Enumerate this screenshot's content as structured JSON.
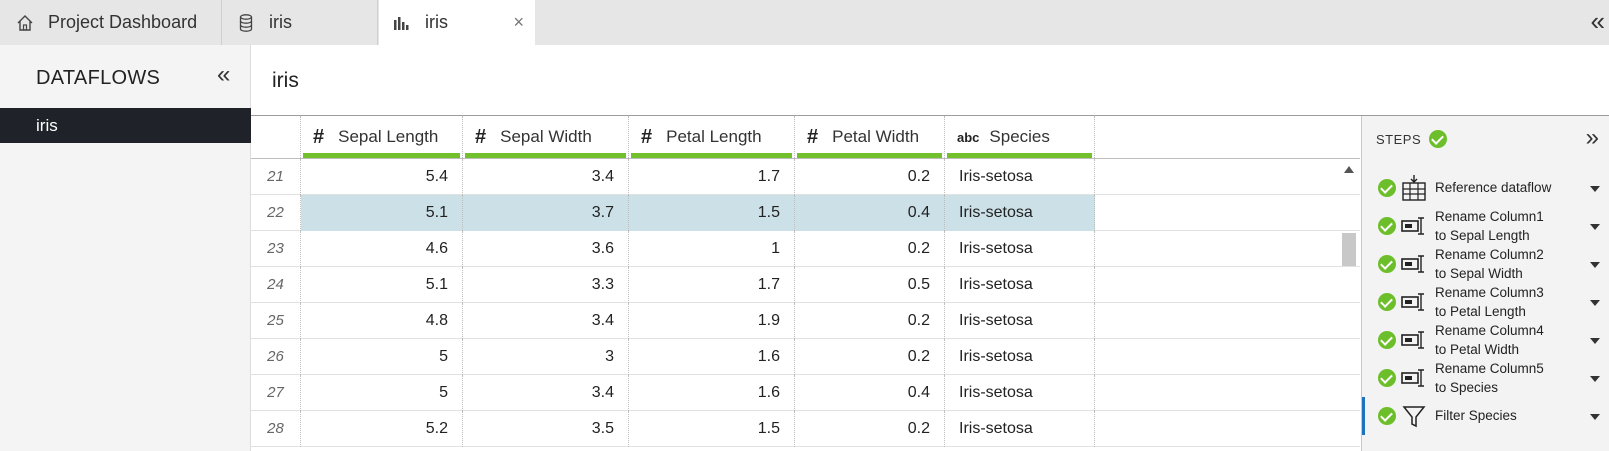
{
  "tabs": [
    {
      "label": "Project Dashboard",
      "icon": "home-icon"
    },
    {
      "label": "iris",
      "icon": "database-icon"
    },
    {
      "label": "iris",
      "icon": "dataflow-chart-icon",
      "active": true,
      "close": "×"
    }
  ],
  "sidebar": {
    "title": "DATAFLOWS",
    "collapse_glyph": "«",
    "items": [
      {
        "label": "iris",
        "selected": true
      }
    ]
  },
  "main": {
    "title": "iris"
  },
  "grid": {
    "columns": [
      {
        "label": "Sepal Length",
        "type_icon": "#"
      },
      {
        "label": "Sepal Width",
        "type_icon": "#"
      },
      {
        "label": "Petal Length",
        "type_icon": "#"
      },
      {
        "label": "Petal Width",
        "type_icon": "#"
      },
      {
        "label": "Species",
        "type_icon": "abc"
      }
    ],
    "selected_row": 22,
    "rows": [
      {
        "idx": "21",
        "cells": [
          "5.4",
          "3.4",
          "1.7",
          "0.2",
          "Iris-setosa"
        ]
      },
      {
        "idx": "22",
        "cells": [
          "5.1",
          "3.7",
          "1.5",
          "0.4",
          "Iris-setosa"
        ]
      },
      {
        "idx": "23",
        "cells": [
          "4.6",
          "3.6",
          "1",
          "0.2",
          "Iris-setosa"
        ]
      },
      {
        "idx": "24",
        "cells": [
          "5.1",
          "3.3",
          "1.7",
          "0.5",
          "Iris-setosa"
        ]
      },
      {
        "idx": "25",
        "cells": [
          "4.8",
          "3.4",
          "1.9",
          "0.2",
          "Iris-setosa"
        ]
      },
      {
        "idx": "26",
        "cells": [
          "5",
          "3",
          "1.6",
          "0.2",
          "Iris-setosa"
        ]
      },
      {
        "idx": "27",
        "cells": [
          "5",
          "3.4",
          "1.6",
          "0.4",
          "Iris-setosa"
        ]
      },
      {
        "idx": "28",
        "cells": [
          "5.2",
          "3.5",
          "1.5",
          "0.2",
          "Iris-setosa"
        ]
      }
    ]
  },
  "steps": {
    "title": "STEPS",
    "collapse_glyph": "»",
    "items": [
      {
        "line1": "Reference dataflow",
        "line2": "",
        "icon": "reference-dataflow-icon"
      },
      {
        "line1": "Rename Column1",
        "line2": "to Sepal Length",
        "icon": "rename-column-icon"
      },
      {
        "line1": "Rename Column2",
        "line2": "to Sepal Width",
        "icon": "rename-column-icon"
      },
      {
        "line1": "Rename Column3",
        "line2": "to Petal Length",
        "icon": "rename-column-icon"
      },
      {
        "line1": "Rename Column4",
        "line2": "to Petal Width",
        "icon": "rename-column-icon"
      },
      {
        "line1": "Rename Column5",
        "line2": "to Species",
        "icon": "rename-column-icon"
      },
      {
        "line1": "Filter Species",
        "line2": "",
        "icon": "filter-icon",
        "active": true
      }
    ]
  },
  "colors": {
    "accent_green": "#72c02c",
    "selected_row": "#cce0e8",
    "active_step": "#1e73be",
    "sidebar_selected": "#1f2329"
  }
}
